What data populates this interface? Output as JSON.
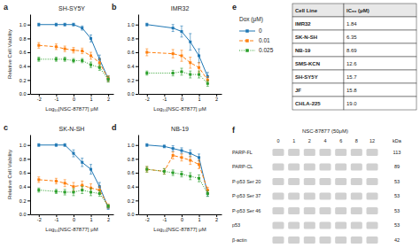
{
  "chart_data": [
    {
      "type": "line",
      "title": "SH-SY5Y",
      "annotations": [
        "a"
      ],
      "xlabel": "Log₁₀[NSC-87877] μM",
      "ylabel": "Relative Cell Viability",
      "legend": "right",
      "legend_title": "Dox (μM)",
      "x": [
        -2,
        -1,
        -0.5,
        0,
        0.5,
        1,
        1.5,
        2
      ],
      "xlim": [
        -2.5,
        2.3
      ],
      "xticks": [
        -2,
        -1,
        0,
        1,
        2
      ],
      "ylim": [
        0,
        1.15
      ],
      "yticks": [
        {
          "value": 0.0,
          "label": "0.0"
        },
        0.2,
        0.4,
        0.6,
        0.8,
        {
          "value": 1.0,
          "label": "1.0"
        }
      ],
      "series": [
        {
          "name": "0",
          "line_style": "solid",
          "marker": "square",
          "values": [
            1.0,
            1.0,
            1.0,
            1.0,
            0.95,
            0.8,
            0.5,
            0.22
          ],
          "errors": [
            0.02,
            0.02,
            0.02,
            0.02,
            0.03,
            0.05,
            0.06,
            0.04
          ]
        },
        {
          "name": "0.01",
          "line_style": "dashed",
          "marker": "square",
          "values": [
            0.7,
            0.68,
            0.65,
            0.63,
            0.62,
            0.55,
            0.45,
            0.22
          ],
          "errors": [
            0.04,
            0.04,
            0.04,
            0.04,
            0.04,
            0.05,
            0.05,
            0.04
          ]
        },
        {
          "name": "0.025",
          "line_style": "dotted",
          "marker": "square",
          "values": [
            0.5,
            0.5,
            0.5,
            0.48,
            0.48,
            0.42,
            0.38,
            0.21
          ],
          "errors": [
            0.03,
            0.03,
            0.03,
            0.03,
            0.03,
            0.04,
            0.04,
            0.04
          ]
        }
      ]
    },
    {
      "type": "line",
      "title": "IMR32",
      "annotations": [
        "b"
      ],
      "xlabel": "Log₁₀[NSC-87877] μM",
      "x": [
        -2,
        -0.5,
        0,
        0.5,
        1,
        1.5
      ],
      "xlim": [
        -2.5,
        2.3
      ],
      "xticks": [
        -2,
        -1,
        0,
        1,
        2
      ],
      "ylim": [
        0,
        1.15
      ],
      "yticks": [
        {
          "value": 0.0,
          "label": "0.0"
        },
        0.2,
        0.4,
        0.6,
        0.8,
        {
          "value": 1.0,
          "label": "1.0"
        }
      ],
      "series": [
        {
          "name": "0",
          "line_style": "solid",
          "marker": "square",
          "values": [
            1.0,
            0.95,
            0.9,
            0.75,
            0.55,
            0.25
          ],
          "errors": [
            0.02,
            0.05,
            0.08,
            0.12,
            0.1,
            0.06
          ]
        },
        {
          "name": "0.01",
          "line_style": "dashed",
          "marker": "square",
          "values": [
            0.6,
            0.58,
            0.55,
            0.45,
            0.38,
            0.2
          ],
          "errors": [
            0.05,
            0.06,
            0.08,
            0.08,
            0.07,
            0.05
          ]
        },
        {
          "name": "0.025",
          "line_style": "dotted",
          "marker": "square",
          "values": [
            0.3,
            0.3,
            0.32,
            0.28,
            0.28,
            0.15
          ],
          "errors": [
            0.03,
            0.04,
            0.05,
            0.05,
            0.05,
            0.04
          ]
        }
      ]
    },
    {
      "type": "line",
      "title": "SK-N-SH",
      "annotations": [
        "c"
      ],
      "xlabel": "Log₁₀[NSC-87877] μM",
      "ylabel": "Relative Cell Viability",
      "x": [
        -2,
        -1,
        -0.5,
        0,
        0.5,
        1,
        1.5,
        2
      ],
      "xlim": [
        -2.5,
        2.3
      ],
      "xticks": [
        -2,
        -1,
        0,
        1,
        2
      ],
      "ylim": [
        0,
        1.15
      ],
      "yticks": [
        {
          "value": 0.0,
          "label": "0.0"
        },
        0.2,
        0.4,
        0.6,
        0.8,
        {
          "value": 1.0,
          "label": "1.0"
        }
      ],
      "series": [
        {
          "name": "0",
          "line_style": "solid",
          "marker": "square",
          "values": [
            1.0,
            1.0,
            1.0,
            0.88,
            0.75,
            0.65,
            0.4,
            0.1
          ],
          "errors": [
            0.02,
            0.02,
            0.02,
            0.05,
            0.06,
            0.07,
            0.06,
            0.03
          ]
        },
        {
          "name": "0.01",
          "line_style": "dashed",
          "marker": "square",
          "values": [
            0.5,
            0.48,
            0.45,
            0.4,
            0.42,
            0.38,
            0.35,
            0.12
          ],
          "errors": [
            0.04,
            0.04,
            0.05,
            0.06,
            0.06,
            0.06,
            0.05,
            0.03
          ]
        },
        {
          "name": "0.025",
          "line_style": "dotted",
          "marker": "square",
          "values": [
            0.35,
            0.33,
            0.32,
            0.32,
            0.35,
            0.32,
            0.3,
            0.12
          ],
          "errors": [
            0.03,
            0.03,
            0.04,
            0.05,
            0.05,
            0.05,
            0.04,
            0.02
          ]
        }
      ]
    },
    {
      "type": "line",
      "title": "NB-19",
      "annotations": [
        "d"
      ],
      "xlabel": "Log₁₀[NSC-87877] μM",
      "x": [
        -2,
        -1,
        -0.5,
        0,
        0.5,
        1,
        1.5
      ],
      "xlim": [
        -2.5,
        2.3
      ],
      "xticks": [
        -2,
        -1,
        0,
        1,
        2
      ],
      "ylim": [
        0,
        1.15
      ],
      "yticks": [
        {
          "value": 0.0,
          "label": "0.0"
        },
        0.2,
        0.4,
        0.6,
        0.8,
        {
          "value": 1.0,
          "label": "1.0"
        }
      ],
      "series": [
        {
          "name": "0",
          "line_style": "solid",
          "marker": "square",
          "values": [
            1.0,
            0.98,
            0.95,
            0.92,
            0.88,
            0.82,
            0.3
          ],
          "errors": [
            0.02,
            0.02,
            0.04,
            0.04,
            0.05,
            0.05,
            0.04
          ]
        },
        {
          "name": "0.01",
          "line_style": "dashed",
          "marker": "square",
          "values": [
            0.65,
            0.62,
            0.85,
            0.82,
            0.78,
            0.72,
            0.35
          ],
          "errors": [
            0.04,
            0.04,
            0.05,
            0.05,
            0.06,
            0.06,
            0.04
          ]
        },
        {
          "name": "0.025",
          "line_style": "dotted",
          "marker": "square",
          "values": [
            0.65,
            0.62,
            0.6,
            0.58,
            0.55,
            0.52,
            0.3
          ],
          "errors": [
            0.04,
            0.04,
            0.04,
            0.04,
            0.05,
            0.05,
            0.04
          ]
        }
      ]
    },
    {
      "type": "table",
      "annotations": [
        "e"
      ],
      "xlabel": "Cell Line",
      "data_labels": true,
      "categories": [
        "IMR32",
        "SK-N-SH",
        "NB-19",
        "SMS-KCN",
        "SH-SY5Y",
        "JF",
        "CHLA-225"
      ],
      "series": [
        {
          "name": "IC₅₀ (μM)",
          "values": [
            1.84,
            6.35,
            8.69,
            12.6,
            15.7,
            15.8,
            19.0
          ],
          "value_labels": [
            "1.84",
            "6.35",
            "8.69",
            "12.6",
            "15.7",
            "15.8",
            "19.0"
          ]
        }
      ]
    },
    {
      "type": "blot",
      "annotations": [
        "f"
      ],
      "title": "NSC-87877 (50μM)",
      "ylabel": "kDa",
      "data_labels": true,
      "x": [
        "0",
        "1",
        "2",
        "4",
        "6",
        "8",
        "12"
      ],
      "categories": [
        "PARP-FL",
        "PARP-CL",
        "P-p53 Ser 20",
        "P-p53 Ser 37",
        "P-p53 Ser 46",
        "p53",
        "β-actin"
      ],
      "values": [
        113,
        89,
        53,
        53,
        53,
        53,
        42
      ]
    }
  ]
}
